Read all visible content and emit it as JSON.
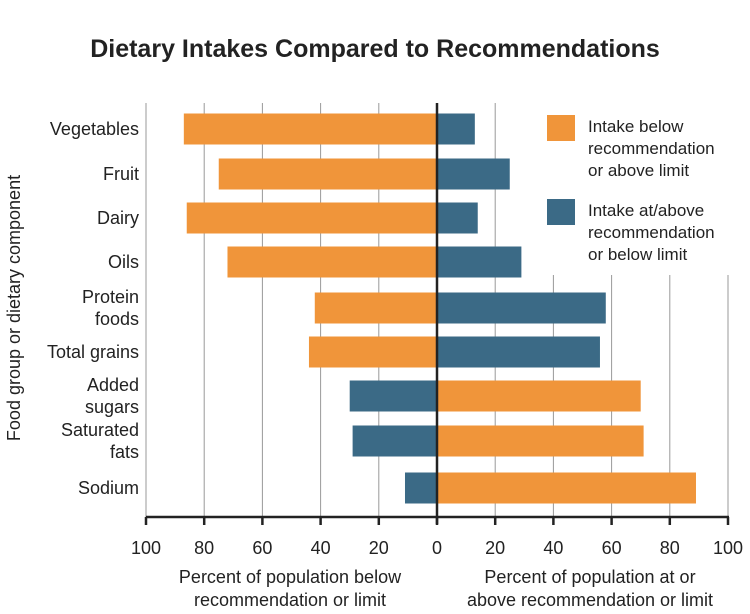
{
  "chart_data": {
    "type": "bar",
    "orientation": "diverging-horizontal",
    "title": "Dietary Intakes Compared to Recommendations",
    "ylabel": "Food group or dietary component",
    "xlabel_left": [
      "Percent of population below",
      "recommendation or limit"
    ],
    "xlabel_right": [
      "Percent of population at or",
      "above recommendation or limit"
    ],
    "xlim": [
      -100,
      100
    ],
    "x_tick_labels": [
      "100",
      "80",
      "60",
      "40",
      "20",
      "0",
      "20",
      "40",
      "60",
      "80",
      "100"
    ],
    "grid": true,
    "legend_position": "top-right",
    "categories": [
      [
        "Vegetables"
      ],
      [
        "Fruit"
      ],
      [
        "Dairy"
      ],
      [
        "Oils"
      ],
      [
        "Protein",
        "foods"
      ],
      [
        "Total grains"
      ],
      [
        "Added",
        "sugars"
      ],
      [
        "Saturated",
        "fats"
      ],
      [
        "Sodium"
      ]
    ],
    "series": [
      {
        "name": "Intake below recommendation or above limit",
        "legend_lines": [
          "Intake below",
          "recommendation",
          "or above limit"
        ],
        "color": "#F0953A",
        "values": [
          87,
          75,
          86,
          72,
          42,
          44,
          70,
          71,
          89
        ],
        "side": [
          "left",
          "left",
          "left",
          "left",
          "left",
          "left",
          "right",
          "right",
          "right"
        ]
      },
      {
        "name": "Intake at/above recommendation or below limit",
        "legend_lines": [
          "Intake at/above",
          "recommendation",
          "or below limit"
        ],
        "color": "#3B6A86",
        "values": [
          13,
          25,
          14,
          29,
          58,
          56,
          30,
          29,
          11
        ],
        "side": [
          "right",
          "right",
          "right",
          "right",
          "right",
          "right",
          "left",
          "left",
          "left"
        ]
      }
    ]
  }
}
